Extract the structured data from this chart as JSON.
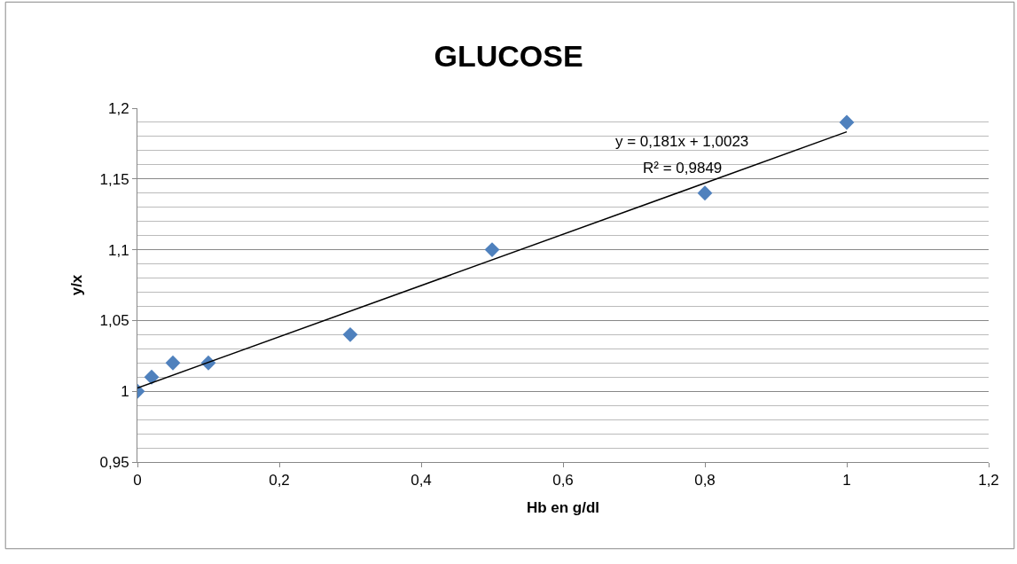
{
  "chart_data": {
    "type": "scatter",
    "title": "GLUCOSE",
    "xlabel": "Hb en g/dl",
    "ylabel": "y/x",
    "x": [
      0,
      0.02,
      0.05,
      0.1,
      0.3,
      0.5,
      0.8,
      1
    ],
    "series": [
      {
        "color": "#4f81bd",
        "marker": "diamond",
        "values": [
          1,
          1.01,
          1.02,
          1.02,
          1.04,
          1.1,
          1.14,
          1.19
        ]
      },
      {
        "type": "line",
        "color": "#000000",
        "x": [
          0,
          1
        ],
        "values": [
          1.0023,
          1.1833
        ],
        "line_style": "solid",
        "marker": "none"
      }
    ],
    "annotations": [
      "y = 0,181x + 1,0023",
      "R² = 0,9849"
    ],
    "xlim": [
      0,
      1.2
    ],
    "xticks": [
      {
        "value": 0,
        "label": "0"
      },
      {
        "value": 0.2,
        "label": "0,2"
      },
      {
        "value": 0.4,
        "label": "0,4"
      },
      {
        "value": 0.6,
        "label": "0,6"
      },
      {
        "value": 0.8,
        "label": "0,8"
      },
      {
        "value": 1,
        "label": "1"
      },
      {
        "value": 1.2,
        "label": "1,2"
      }
    ],
    "ylim": [
      0.95,
      1.2
    ],
    "yticks": [
      {
        "value": 0.95,
        "label": "0,95"
      },
      {
        "value": 1,
        "label": "1"
      },
      {
        "value": 1.05,
        "label": "1,05"
      },
      {
        "value": 1.1,
        "label": "1,1"
      },
      {
        "value": 1.15,
        "label": "1,15"
      },
      {
        "value": 1.2,
        "label": "1,2"
      }
    ],
    "grid": "y",
    "legend": false
  }
}
